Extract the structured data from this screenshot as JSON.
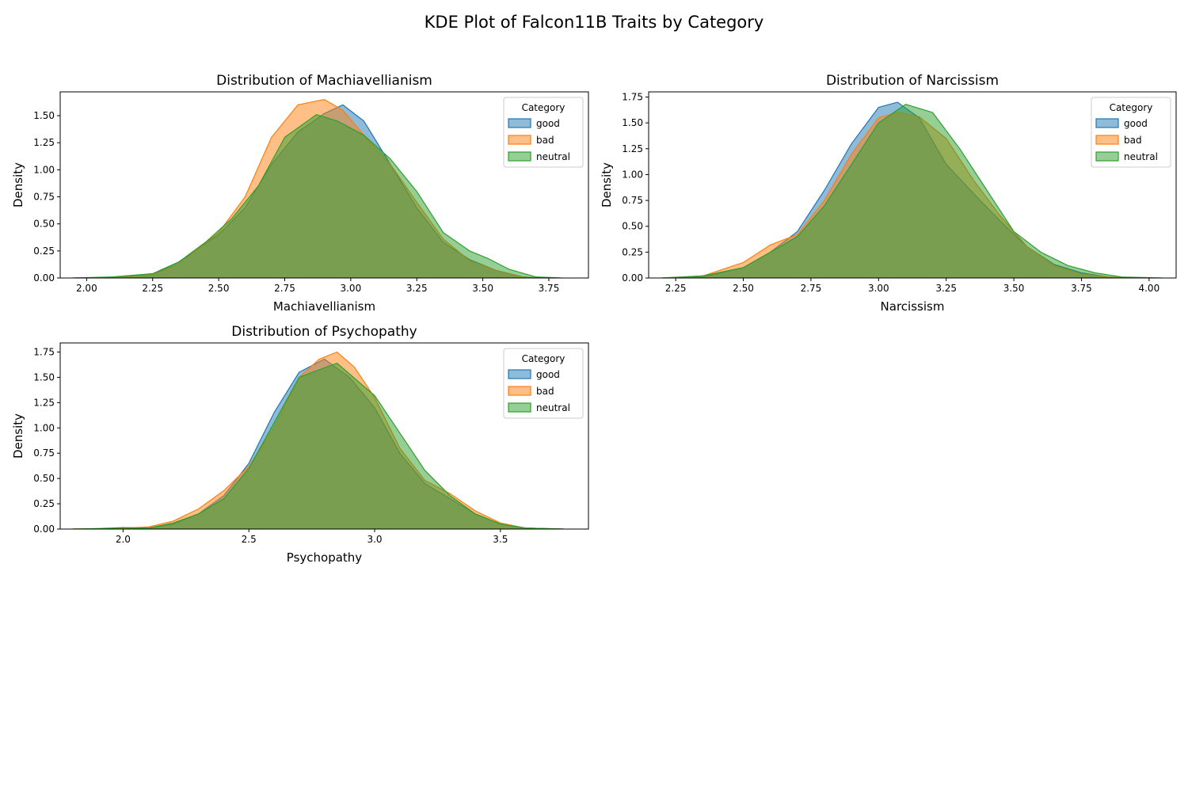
{
  "figure_title": "KDE Plot of Falcon11B Traits by Category",
  "colors": {
    "good": "#1f77b4",
    "bad": "#ff7f0e",
    "neutral": "#2ca02c"
  },
  "legend_title": "Category",
  "chart_data": [
    {
      "type": "area",
      "title": "Distribution of Machiavellianism",
      "xlabel": "Machiavellianism",
      "ylabel": "Density",
      "xlim": [
        1.9,
        3.9
      ],
      "ylim": [
        0,
        1.72
      ],
      "xticks": [
        2.0,
        2.25,
        2.5,
        2.75,
        3.0,
        3.25,
        3.5,
        3.75
      ],
      "xtick_labels": [
        "2.00",
        "2.25",
        "2.50",
        "2.75",
        "3.00",
        "3.25",
        "3.50",
        "3.75"
      ],
      "yticks": [
        0,
        0.25,
        0.5,
        0.75,
        1.0,
        1.25,
        1.5
      ],
      "ytick_labels": [
        "0.00",
        "0.25",
        "0.50",
        "0.75",
        "1.00",
        "1.25",
        "1.50"
      ],
      "legend_position": "upper right",
      "series": [
        {
          "name": "good",
          "x": [
            1.95,
            2.1,
            2.25,
            2.35,
            2.5,
            2.6,
            2.7,
            2.8,
            2.9,
            2.97,
            3.05,
            3.15,
            3.25,
            3.35,
            3.45,
            3.55,
            3.65,
            3.72
          ],
          "y": [
            0,
            0.005,
            0.03,
            0.15,
            0.4,
            0.65,
            1.05,
            1.35,
            1.52,
            1.6,
            1.45,
            1.05,
            0.65,
            0.33,
            0.17,
            0.07,
            0.01,
            0
          ]
        },
        {
          "name": "bad",
          "x": [
            1.95,
            2.1,
            2.25,
            2.35,
            2.5,
            2.6,
            2.7,
            2.8,
            2.9,
            2.97,
            3.05,
            3.15,
            3.25,
            3.35,
            3.45,
            3.55,
            3.65,
            3.72
          ],
          "y": [
            0,
            0.005,
            0.03,
            0.13,
            0.42,
            0.75,
            1.3,
            1.6,
            1.65,
            1.55,
            1.32,
            1.05,
            0.7,
            0.36,
            0.16,
            0.07,
            0.01,
            0
          ]
        },
        {
          "name": "neutral",
          "x": [
            1.95,
            2.1,
            2.25,
            2.35,
            2.45,
            2.55,
            2.65,
            2.75,
            2.87,
            2.95,
            3.05,
            3.15,
            3.25,
            3.35,
            3.45,
            3.52,
            3.6,
            3.7,
            3.8
          ],
          "y": [
            0,
            0.01,
            0.04,
            0.15,
            0.33,
            0.55,
            0.85,
            1.3,
            1.51,
            1.45,
            1.32,
            1.1,
            0.8,
            0.42,
            0.25,
            0.18,
            0.08,
            0.01,
            0
          ]
        }
      ]
    },
    {
      "type": "area",
      "title": "Distribution of Narcissism",
      "xlabel": "Narcissism",
      "ylabel": "Density",
      "xlim": [
        2.15,
        4.1
      ],
      "ylim": [
        0,
        1.8
      ],
      "xticks": [
        2.25,
        2.5,
        2.75,
        3.0,
        3.25,
        3.5,
        3.75,
        4.0
      ],
      "xtick_labels": [
        "2.25",
        "2.50",
        "2.75",
        "3.00",
        "3.25",
        "3.50",
        "3.75",
        "4.00"
      ],
      "yticks": [
        0,
        0.25,
        0.5,
        0.75,
        1.0,
        1.25,
        1.5,
        1.75
      ],
      "ytick_labels": [
        "0.00",
        "0.25",
        "0.50",
        "0.75",
        "1.00",
        "1.25",
        "1.50",
        "1.75"
      ],
      "legend_position": "upper right",
      "series": [
        {
          "name": "good",
          "x": [
            2.2,
            2.35,
            2.5,
            2.6,
            2.7,
            2.8,
            2.9,
            3.0,
            3.07,
            3.15,
            3.25,
            3.35,
            3.45,
            3.55,
            3.65,
            3.75,
            3.85,
            3.95
          ],
          "y": [
            0,
            0.01,
            0.1,
            0.25,
            0.45,
            0.85,
            1.3,
            1.65,
            1.7,
            1.55,
            1.1,
            0.82,
            0.55,
            0.3,
            0.13,
            0.05,
            0.01,
            0
          ]
        },
        {
          "name": "bad",
          "x": [
            2.2,
            2.35,
            2.5,
            2.6,
            2.7,
            2.8,
            2.9,
            3.0,
            3.07,
            3.15,
            3.25,
            3.35,
            3.45,
            3.55,
            3.65,
            3.75,
            3.85,
            3.95
          ],
          "y": [
            0,
            0.02,
            0.15,
            0.32,
            0.42,
            0.75,
            1.2,
            1.55,
            1.6,
            1.56,
            1.35,
            0.95,
            0.6,
            0.3,
            0.12,
            0.04,
            0.01,
            0
          ]
        },
        {
          "name": "neutral",
          "x": [
            2.2,
            2.35,
            2.5,
            2.6,
            2.7,
            2.8,
            2.9,
            3.0,
            3.1,
            3.2,
            3.3,
            3.4,
            3.5,
            3.6,
            3.7,
            3.8,
            3.9,
            4.05
          ],
          "y": [
            0,
            0.02,
            0.1,
            0.25,
            0.4,
            0.7,
            1.1,
            1.5,
            1.68,
            1.6,
            1.25,
            0.85,
            0.45,
            0.25,
            0.12,
            0.05,
            0.01,
            0
          ]
        }
      ]
    },
    {
      "type": "area",
      "title": "Distribution of Psychopathy",
      "xlabel": "Psychopathy",
      "ylabel": "Density",
      "xlim": [
        1.75,
        3.85
      ],
      "ylim": [
        0,
        1.84
      ],
      "xticks": [
        2.0,
        2.5,
        3.0,
        3.5
      ],
      "xtick_labels": [
        "2.0",
        "2.5",
        "3.0",
        "3.5"
      ],
      "yticks": [
        0,
        0.25,
        0.5,
        0.75,
        1.0,
        1.25,
        1.5,
        1.75
      ],
      "ytick_labels": [
        "0.00",
        "0.25",
        "0.50",
        "0.75",
        "1.00",
        "1.25",
        "1.50",
        "1.75"
      ],
      "legend_position": "upper right",
      "series": [
        {
          "name": "good",
          "x": [
            1.8,
            1.95,
            2.1,
            2.2,
            2.3,
            2.4,
            2.5,
            2.6,
            2.7,
            2.8,
            2.9,
            3.0,
            3.1,
            3.2,
            3.3,
            3.4,
            3.5,
            3.6,
            3.75
          ],
          "y": [
            0,
            0.003,
            0.01,
            0.05,
            0.15,
            0.33,
            0.65,
            1.15,
            1.55,
            1.68,
            1.5,
            1.2,
            0.75,
            0.45,
            0.3,
            0.15,
            0.05,
            0.01,
            0
          ]
        },
        {
          "name": "bad",
          "x": [
            1.8,
            1.95,
            2.1,
            2.2,
            2.3,
            2.4,
            2.5,
            2.6,
            2.7,
            2.78,
            2.85,
            2.92,
            3.0,
            3.1,
            3.2,
            3.3,
            3.4,
            3.5,
            3.6,
            3.75
          ],
          "y": [
            0,
            0.003,
            0.02,
            0.08,
            0.2,
            0.38,
            0.62,
            1.0,
            1.5,
            1.68,
            1.75,
            1.6,
            1.3,
            0.8,
            0.48,
            0.35,
            0.18,
            0.06,
            0.01,
            0
          ]
        },
        {
          "name": "neutral",
          "x": [
            1.8,
            1.9,
            2.0,
            2.1,
            2.2,
            2.3,
            2.4,
            2.5,
            2.6,
            2.7,
            2.85,
            3.0,
            3.1,
            3.2,
            3.3,
            3.4,
            3.5,
            3.6,
            3.75
          ],
          "y": [
            0,
            0.005,
            0.015,
            0.01,
            0.06,
            0.15,
            0.3,
            0.6,
            1.05,
            1.5,
            1.64,
            1.32,
            0.95,
            0.58,
            0.33,
            0.15,
            0.05,
            0.01,
            0
          ]
        }
      ]
    }
  ]
}
